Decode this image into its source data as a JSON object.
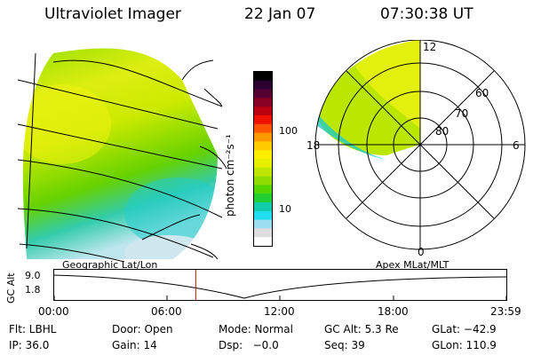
{
  "header": {
    "instrument": "Ultraviolet Imager",
    "date": "22 Jan 07",
    "time": "07:30:38 UT"
  },
  "colorbar": {
    "unit_label": "photon cm⁻²s⁻¹",
    "tick_labels": [
      "100",
      "10"
    ],
    "colors": [
      "#000000",
      "#2a0033",
      "#550033",
      "#880022",
      "#bb0011",
      "#ee1100",
      "#ff5500",
      "#ff9900",
      "#ffcc00",
      "#ffee00",
      "#e6f000",
      "#bfe600",
      "#8fdc00",
      "#55d400",
      "#22cc33",
      "#11ccaa",
      "#22ddee",
      "#99ddee",
      "#dddddd",
      "#ffffff"
    ]
  },
  "polar_plot": {
    "mlt_labels": [
      "12",
      "6",
      "0",
      "18"
    ],
    "lat_labels": [
      "60",
      "70",
      "80"
    ]
  },
  "panel_labels": {
    "left": "Geographic Lat/Lon",
    "right": "Apex MLat/MLT"
  },
  "altitude_plot": {
    "ylabel": "GC Alt",
    "yticks": [
      "9.0",
      "1.8"
    ],
    "xticks": [
      "00:00",
      "06:00",
      "12:00",
      "18:00",
      "23:59"
    ],
    "current_time_hours": 7.51
  },
  "status": {
    "row1": [
      {
        "label": "Flt: LBHL"
      },
      {
        "label": "Door: Open"
      },
      {
        "label": "Mode: Normal"
      },
      {
        "label": "GC Alt: 5.3 Re"
      },
      {
        "label": "GLat: −42.9"
      }
    ],
    "row2": [
      {
        "label": "IP: 36.0"
      },
      {
        "label": "Gain: 14"
      },
      {
        "label": "Dsp:   −0.0"
      },
      {
        "label": "Seq: 39"
      },
      {
        "label": "GLon: 110.9"
      }
    ]
  },
  "theme": {
    "accent_line": "#cc0000"
  }
}
